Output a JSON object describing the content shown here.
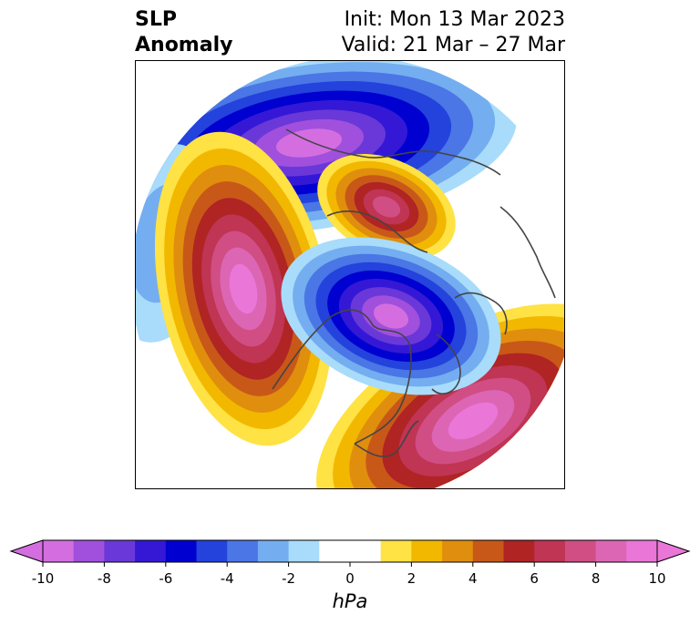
{
  "title": {
    "left_line1": "SLP",
    "left_line2": "Anomaly",
    "right_line1": "Init: Mon 13 Mar 2023",
    "right_line2": "Valid: 21 Mar – 27 Mar"
  },
  "colorbar": {
    "units": "hPa",
    "min": -10,
    "max": 10,
    "extend": "both",
    "ticks": [
      -10,
      -8,
      -6,
      -4,
      -2,
      0,
      2,
      4,
      6,
      8,
      10
    ],
    "tick_labels": [
      "-10",
      "-8",
      "-6",
      "-4",
      "-2",
      "0",
      "2",
      "4",
      "6",
      "8",
      "10"
    ],
    "bins": [
      {
        "from": -10,
        "to": -9,
        "color": "#d46ee0"
      },
      {
        "from": -9,
        "to": -8,
        "color": "#a050dc"
      },
      {
        "from": -8,
        "to": -7,
        "color": "#6a38d8"
      },
      {
        "from": -7,
        "to": -6,
        "color": "#3418d6"
      },
      {
        "from": -6,
        "to": -5,
        "color": "#0000d0"
      },
      {
        "from": -5,
        "to": -4,
        "color": "#2442dc"
      },
      {
        "from": -4,
        "to": -3,
        "color": "#4a76e6"
      },
      {
        "from": -3,
        "to": -2,
        "color": "#74aef0"
      },
      {
        "from": -2,
        "to": -1,
        "color": "#a8dcfa"
      },
      {
        "from": -1,
        "to": 1,
        "color": "#ffffff"
      },
      {
        "from": 1,
        "to": 2,
        "color": "#ffe244"
      },
      {
        "from": 2,
        "to": 3,
        "color": "#f2b800"
      },
      {
        "from": 3,
        "to": 4,
        "color": "#e08e0e"
      },
      {
        "from": 4,
        "to": 5,
        "color": "#c85818"
      },
      {
        "from": 5,
        "to": 6,
        "color": "#b02424"
      },
      {
        "from": 6,
        "to": 7,
        "color": "#c03454"
      },
      {
        "from": 7,
        "to": 8,
        "color": "#d04e84"
      },
      {
        "from": 8,
        "to": 9,
        "color": "#dc66b4"
      },
      {
        "from": 9,
        "to": 10,
        "color": "#ea76d8"
      }
    ],
    "under_color": "#d46ee0",
    "over_color": "#ea76d8"
  },
  "map": {
    "projection": "north-polar-stereographic",
    "coastline_color": "#444444",
    "features": [
      {
        "name": "pacific-high",
        "type": "positive",
        "peak": 10
      },
      {
        "name": "atlantic-high",
        "type": "positive",
        "peak": 10
      },
      {
        "name": "barents-high",
        "type": "positive",
        "peak": 7
      },
      {
        "name": "arctic-low",
        "type": "negative",
        "peak": -10
      },
      {
        "name": "eurasia-low",
        "type": "negative",
        "peak": -9
      }
    ]
  }
}
